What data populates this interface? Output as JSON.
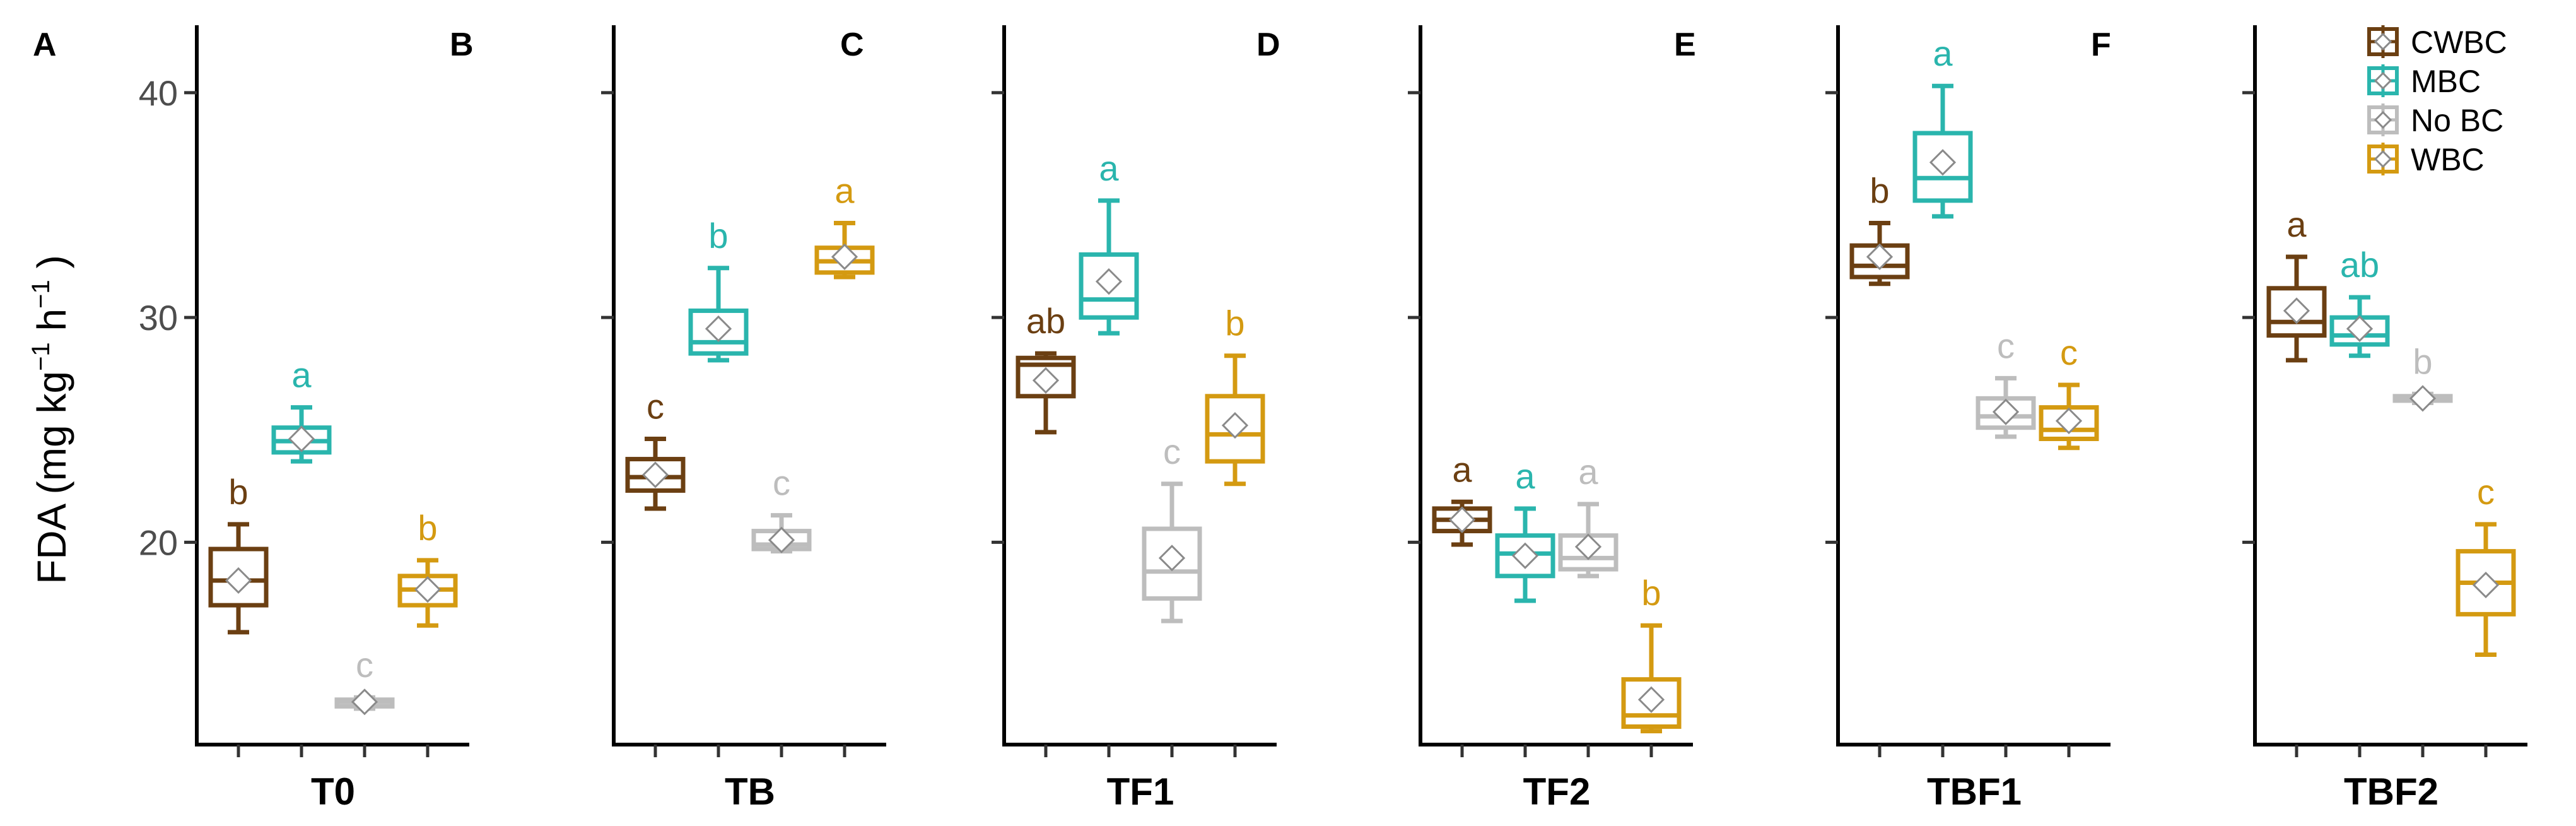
{
  "chart_data": {
    "type": "box",
    "y_axis": {
      "title_main": "FDA (mg kg",
      "title_sup1": "−1",
      "title_mid": " h",
      "title_sup2": "−1",
      "title_end": " )",
      "ticks": [
        20,
        30,
        40
      ],
      "range": [
        11,
        43
      ]
    },
    "series": [
      {
        "name": "CWBC",
        "color": "#6B3F12"
      },
      {
        "name": "MBC",
        "color": "#2AB5AD"
      },
      {
        "name": "No BC",
        "color": "#BDBDBD"
      },
      {
        "name": "WBC",
        "color": "#D49A11"
      }
    ],
    "panels": [
      {
        "letter": "A",
        "group": "T0",
        "boxes": [
          {
            "series": "CWBC",
            "wlo": 16.0,
            "q1": 17.2,
            "med": 18.3,
            "q3": 19.7,
            "whi": 20.8,
            "mean": 18.3,
            "sig": "b"
          },
          {
            "series": "MBC",
            "wlo": 23.6,
            "q1": 24.0,
            "med": 24.5,
            "q3": 25.1,
            "whi": 26.0,
            "mean": 24.6,
            "sig": "a"
          },
          {
            "series": "No BC",
            "wlo": 12.6,
            "q1": 12.7,
            "med": 12.9,
            "q3": 13.0,
            "whi": 13.1,
            "mean": 12.9,
            "sig": "c"
          },
          {
            "series": "WBC",
            "wlo": 16.3,
            "q1": 17.2,
            "med": 17.9,
            "q3": 18.5,
            "whi": 19.2,
            "mean": 17.9,
            "sig": "b"
          }
        ]
      },
      {
        "letter": "B",
        "group": "TB",
        "boxes": [
          {
            "series": "CWBC",
            "wlo": 21.5,
            "q1": 22.3,
            "med": 22.9,
            "q3": 23.7,
            "whi": 24.6,
            "mean": 23.0,
            "sig": "c"
          },
          {
            "series": "MBC",
            "wlo": 28.1,
            "q1": 28.4,
            "med": 28.9,
            "q3": 30.3,
            "whi": 32.2,
            "mean": 29.5,
            "sig": "b"
          },
          {
            "series": "No BC",
            "wlo": 19.6,
            "q1": 19.7,
            "med": 19.9,
            "q3": 20.5,
            "whi": 21.2,
            "mean": 20.1,
            "sig": "c"
          },
          {
            "series": "WBC",
            "wlo": 31.8,
            "q1": 32.0,
            "med": 32.5,
            "q3": 33.1,
            "whi": 34.2,
            "mean": 32.7,
            "sig": "a"
          }
        ]
      },
      {
        "letter": "C",
        "group": "TF1",
        "boxes": [
          {
            "series": "CWBC",
            "wlo": 24.9,
            "q1": 26.5,
            "med": 27.9,
            "q3": 28.2,
            "whi": 28.4,
            "mean": 27.2,
            "sig": "ab"
          },
          {
            "series": "MBC",
            "wlo": 29.3,
            "q1": 30.0,
            "med": 30.8,
            "q3": 32.8,
            "whi": 35.2,
            "mean": 31.6,
            "sig": "a"
          },
          {
            "series": "No BC",
            "wlo": 16.5,
            "q1": 17.5,
            "med": 18.7,
            "q3": 20.6,
            "whi": 22.6,
            "mean": 19.3,
            "sig": "c"
          },
          {
            "series": "WBC",
            "wlo": 22.6,
            "q1": 23.6,
            "med": 24.8,
            "q3": 26.5,
            "whi": 28.3,
            "mean": 25.2,
            "sig": "b"
          }
        ]
      },
      {
        "letter": "D",
        "group": "TF2",
        "boxes": [
          {
            "series": "CWBC",
            "wlo": 19.9,
            "q1": 20.5,
            "med": 21.0,
            "q3": 21.5,
            "whi": 21.8,
            "mean": 21.0,
            "sig": "a"
          },
          {
            "series": "MBC",
            "wlo": 17.4,
            "q1": 18.5,
            "med": 19.5,
            "q3": 20.3,
            "whi": 21.5,
            "mean": 19.4,
            "sig": "a"
          },
          {
            "series": "No BC",
            "wlo": 18.5,
            "q1": 18.8,
            "med": 19.3,
            "q3": 20.3,
            "whi": 21.7,
            "mean": 19.8,
            "sig": "a"
          },
          {
            "series": "WBC",
            "wlo": 11.6,
            "q1": 11.8,
            "med": 12.3,
            "q3": 13.9,
            "whi": 16.3,
            "mean": 13.0,
            "sig": "b"
          }
        ]
      },
      {
        "letter": "E",
        "group": "TBF1",
        "boxes": [
          {
            "series": "CWBC",
            "wlo": 31.5,
            "q1": 31.8,
            "med": 32.3,
            "q3": 33.2,
            "whi": 34.2,
            "mean": 32.7,
            "sig": "b"
          },
          {
            "series": "MBC",
            "wlo": 34.5,
            "q1": 35.2,
            "med": 36.2,
            "q3": 38.2,
            "whi": 40.3,
            "mean": 36.9,
            "sig": "a"
          },
          {
            "series": "No BC",
            "wlo": 24.7,
            "q1": 25.1,
            "med": 25.6,
            "q3": 26.4,
            "whi": 27.3,
            "mean": 25.8,
            "sig": "c"
          },
          {
            "series": "WBC",
            "wlo": 24.2,
            "q1": 24.6,
            "med": 25.0,
            "q3": 26.0,
            "whi": 27.0,
            "mean": 25.4,
            "sig": "c"
          }
        ]
      },
      {
        "letter": "F",
        "group": "TBF2",
        "boxes": [
          {
            "series": "CWBC",
            "wlo": 28.1,
            "q1": 29.2,
            "med": 29.8,
            "q3": 31.3,
            "whi": 32.7,
            "mean": 30.3,
            "sig": "a"
          },
          {
            "series": "MBC",
            "wlo": 28.3,
            "q1": 28.8,
            "med": 29.2,
            "q3": 30.0,
            "whi": 30.9,
            "mean": 29.5,
            "sig": "ab"
          },
          {
            "series": "No BC",
            "wlo": 26.2,
            "q1": 26.3,
            "med": 26.4,
            "q3": 26.5,
            "whi": 26.6,
            "mean": 26.4,
            "sig": "b"
          },
          {
            "series": "WBC",
            "wlo": 15.0,
            "q1": 16.8,
            "med": 18.2,
            "q3": 19.6,
            "whi": 20.8,
            "mean": 18.1,
            "sig": "c"
          }
        ]
      }
    ],
    "legend": {
      "placement": "top-right",
      "entries": [
        "CWBC",
        "MBC",
        "No BC",
        "WBC"
      ]
    }
  }
}
